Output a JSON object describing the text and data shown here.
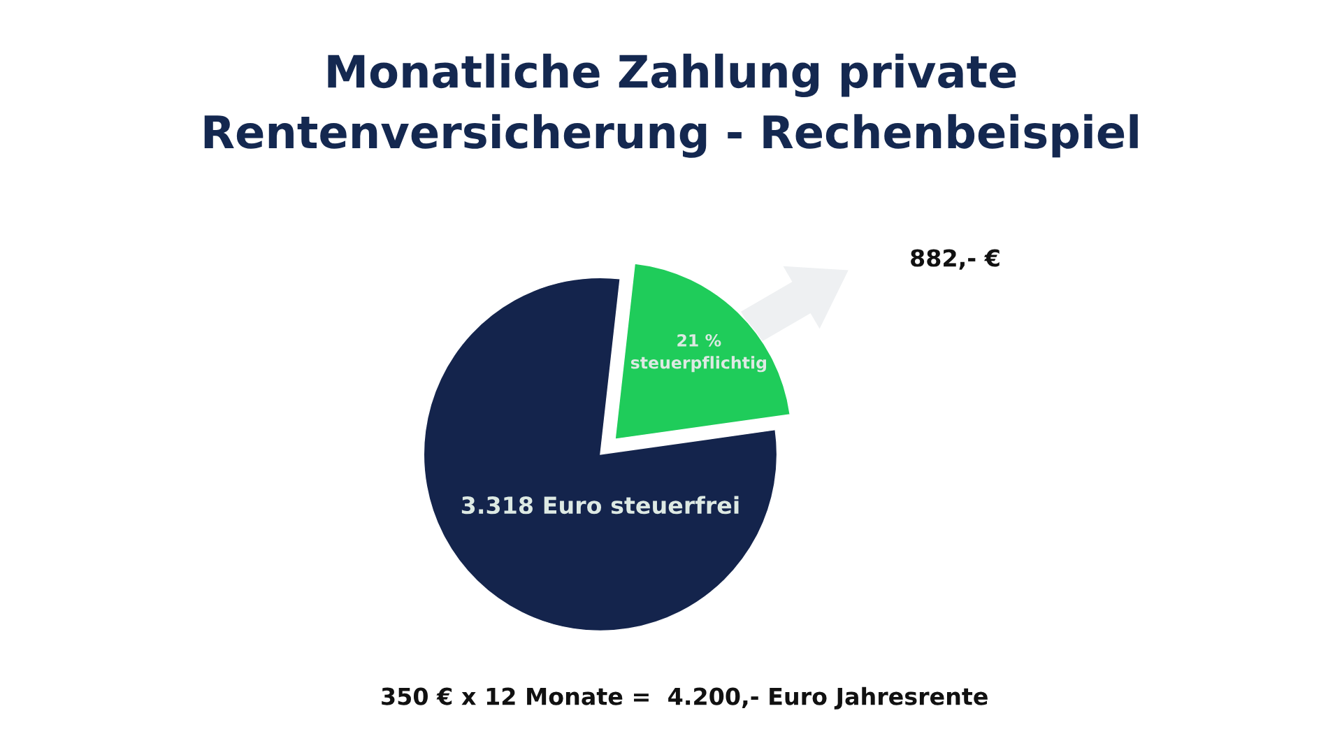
{
  "chart_data": {
    "type": "pie",
    "title": "Monatliche Zahlung private\nRentenversicherung - Rechenbeispiel",
    "categories": [
      "21 %\nsteuerpflichtig",
      "3.318 Euro steuerfrei"
    ],
    "values": [
      882,
      3318
    ],
    "colors": [
      "#1fcc5a",
      "#14244c"
    ],
    "annotations": [
      "882,- €",
      "350 € x 12 Monate =  4.200,- Euro Jahresrente"
    ]
  }
}
